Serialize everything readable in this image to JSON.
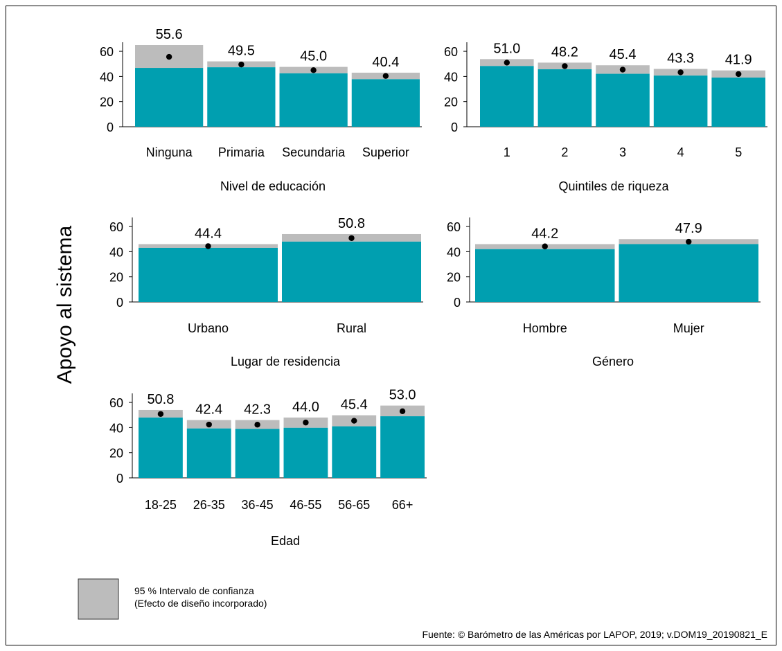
{
  "colors": {
    "bar": "#009fb0",
    "ci": "#bcbcbc",
    "point": "#000000",
    "axis": "#000000",
    "border": "#000000"
  },
  "ylabel": "Apoyo al sistema",
  "legend": {
    "line1": "95 % Intervalo de confianza",
    "line2": "(Efecto de diseño incorporado)"
  },
  "source": "Fuente: © Barómetro de las Américas por LAPOP, 2019; v.DOM19_20190821_E",
  "chart_data": [
    {
      "type": "bar",
      "title": "Nivel de educación",
      "categories": [
        "Ninguna",
        "Primaria",
        "Secundaria",
        "Superior"
      ],
      "values": [
        55.6,
        49.5,
        45.0,
        40.4
      ],
      "value_labels": [
        "55.6",
        "49.5",
        "45.0",
        "40.4"
      ],
      "ci_low": [
        46.8,
        47.3,
        42.5,
        37.8
      ],
      "ci_high": [
        65.0,
        52.0,
        47.6,
        43.0
      ],
      "yticks": [
        0,
        20,
        40,
        60
      ],
      "ylim": [
        0,
        65
      ]
    },
    {
      "type": "bar",
      "title": "Quintiles de riqueza",
      "categories": [
        "1",
        "2",
        "3",
        "4",
        "5"
      ],
      "values": [
        51.0,
        48.2,
        45.4,
        43.3,
        41.9
      ],
      "value_labels": [
        "51.0",
        "48.2",
        "45.4",
        "43.3",
        "41.9"
      ],
      "ci_low": [
        48.3,
        45.7,
        42.1,
        40.7,
        39.1
      ],
      "ci_high": [
        53.8,
        51.0,
        48.9,
        46.0,
        44.8
      ],
      "yticks": [
        0,
        20,
        40,
        60
      ],
      "ylim": [
        0,
        65
      ]
    },
    {
      "type": "bar",
      "title": "Lugar de residencia",
      "categories": [
        "Urbano",
        "Rural"
      ],
      "values": [
        44.4,
        50.8
      ],
      "value_labels": [
        "44.4",
        "50.8"
      ],
      "ci_low": [
        43.0,
        48.0
      ],
      "ci_high": [
        46.0,
        54.0
      ],
      "yticks": [
        0,
        20,
        40,
        60
      ],
      "ylim": [
        0,
        65
      ]
    },
    {
      "type": "bar",
      "title": "Género",
      "categories": [
        "Hombre",
        "Mujer"
      ],
      "values": [
        44.2,
        47.9
      ],
      "value_labels": [
        "44.2",
        "47.9"
      ],
      "ci_low": [
        42.0,
        46.0
      ],
      "ci_high": [
        46.0,
        50.0
      ],
      "yticks": [
        0,
        20,
        40,
        60
      ],
      "ylim": [
        0,
        65
      ]
    },
    {
      "type": "bar",
      "title": "Edad",
      "categories": [
        "18-25",
        "26-35",
        "36-45",
        "46-55",
        "56-65",
        "66+"
      ],
      "values": [
        50.8,
        42.4,
        42.3,
        44.0,
        45.4,
        53.0
      ],
      "value_labels": [
        "50.8",
        "42.4",
        "42.3",
        "44.0",
        "45.4",
        "53.0"
      ],
      "ci_low": [
        48.0,
        39.3,
        39.0,
        39.8,
        41.0,
        49.0
      ],
      "ci_high": [
        54.0,
        46.0,
        46.0,
        48.0,
        49.8,
        57.5
      ],
      "yticks": [
        0,
        20,
        40,
        60
      ],
      "ylim": [
        0,
        65
      ]
    }
  ]
}
